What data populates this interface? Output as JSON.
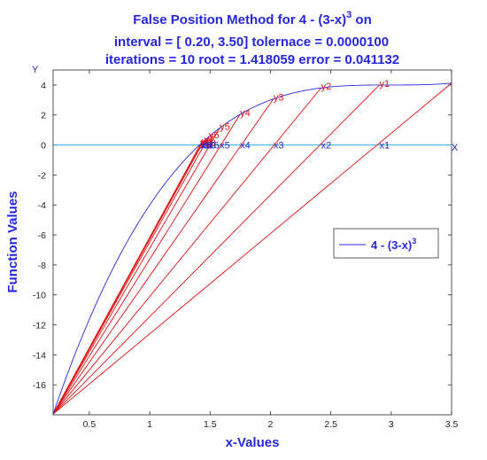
{
  "chart_data": {
    "type": "line",
    "title_lines": [
      "False Position Method for 4 - (3-x)",
      "interval = [ 0.20, 3.50]     tolernace =  0.0000100",
      "iterations =  10     root = 1.418059     error = 0.041132"
    ],
    "title_superscript": "3",
    "xlabel": "x-Values",
    "ylabel": "Function Values",
    "y_axis_marker": "Y",
    "x_axis_marker": "X",
    "xlim": [
      0.2,
      3.5
    ],
    "ylim": [
      -18,
      5
    ],
    "x_ticks": [
      "0.5",
      "1",
      "1.5",
      "2",
      "2.5",
      "3",
      "3.5"
    ],
    "x_tick_values": [
      0.5,
      1,
      1.5,
      2,
      2.5,
      3,
      3.5
    ],
    "y_ticks": [
      "4",
      "2",
      "0",
      "-2",
      "-4",
      "-6",
      "-8",
      "-10",
      "-12",
      "-14",
      "-16"
    ],
    "y_tick_values": [
      4,
      2,
      0,
      -2,
      -4,
      -6,
      -8,
      -10,
      -12,
      -14,
      -16
    ],
    "curve": {
      "name": "4 - (3-x)",
      "name_superscript": "3",
      "x_start": 0.2,
      "x_end": 3.5,
      "color": "#2626e0"
    },
    "anchor_point": {
      "x": 0.2,
      "y": -17.952
    },
    "iterations": [
      {
        "x": 2.902,
        "label_y": "y1",
        "label_x": "x1"
      },
      {
        "x": 2.419,
        "label_y": "y2",
        "label_x": "x2"
      },
      {
        "x": 2.025,
        "label_y": "y3",
        "label_x": "x3"
      },
      {
        "x": 1.748,
        "label_y": "y4",
        "label_x": "x4"
      },
      {
        "x": 1.58,
        "label_y": "y5",
        "label_x": "x5"
      },
      {
        "x": 1.49,
        "label_y": "y6",
        "label_x": "x6"
      },
      {
        "x": 1.449,
        "label_y": "y7",
        "label_x": "x7"
      },
      {
        "x": 1.431,
        "label_y": "y8",
        "label_x": "x8"
      },
      {
        "x": 1.423,
        "label_y": "y9",
        "label_x": "x9"
      },
      {
        "x": 1.418,
        "label_y": "y10",
        "label_x": "x10"
      }
    ],
    "legend": {
      "position": "right-middle"
    },
    "colors": {
      "curve": "#2626e0",
      "secant": "#e01010",
      "zero_line": "#30a8d8",
      "text": "#2626e0"
    },
    "grid": false
  }
}
